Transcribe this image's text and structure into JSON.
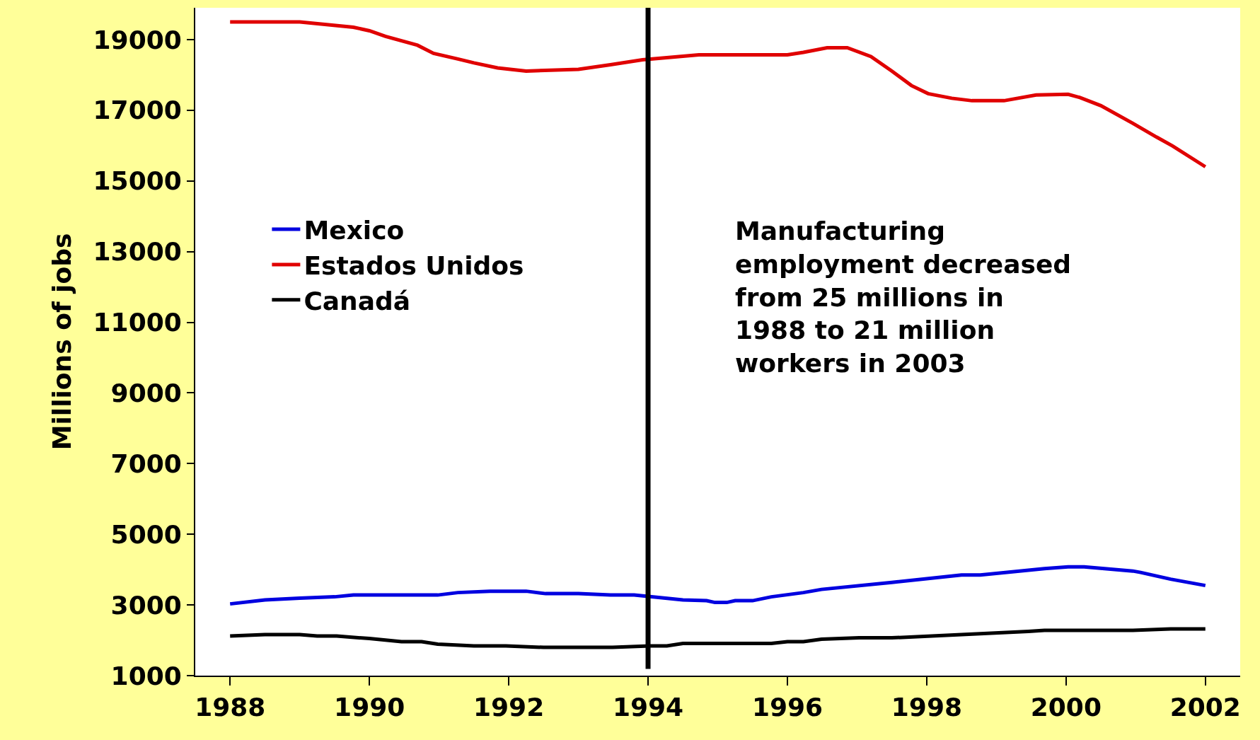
{
  "chart_data": {
    "type": "line",
    "ylabel": "Millions of jobs",
    "xlim": [
      1987.5,
      2002.5
    ],
    "xticks": [
      1988,
      1990,
      1992,
      1994,
      1996,
      1998,
      2000,
      2002
    ],
    "ylim": [
      1000,
      19900
    ],
    "yticks": [
      1000,
      3000,
      5000,
      7000,
      9000,
      11000,
      13000,
      15000,
      17000,
      19000
    ],
    "legend": "left",
    "marker": "none",
    "line_style": "solid",
    "series": [
      {
        "name": "Mexico",
        "color": "#0000e0",
        "x": [
          1988.0,
          1988.5,
          1989.0,
          1989.5,
          1989.77,
          1990.98,
          1991.27,
          1991.73,
          1992.25,
          1992.53,
          1993.0,
          1993.46,
          1993.8,
          1994.5,
          1994.84,
          1994.96,
          1995.13,
          1995.25,
          1995.5,
          1995.77,
          1996.23,
          1996.49,
          1997.5,
          1998.5,
          1998.77,
          1999.69,
          2000.03,
          2000.26,
          2000.96,
          2001.07,
          2001.5,
          2002.0
        ],
        "values": [
          3030,
          3140,
          3190,
          3230,
          3280,
          3280,
          3350,
          3390,
          3390,
          3320,
          3320,
          3280,
          3280,
          3140,
          3120,
          3070,
          3070,
          3120,
          3120,
          3230,
          3350,
          3440,
          3640,
          3850,
          3850,
          4030,
          4080,
          4080,
          3960,
          3920,
          3730,
          3550
        ]
      },
      {
        "name": "Estados Unidos",
        "color": "#e00000",
        "x": [
          1988.0,
          1989.0,
          1989.77,
          1990.0,
          1990.23,
          1990.69,
          1990.92,
          1991.27,
          1991.5,
          1991.84,
          1992.25,
          1993.0,
          1993.46,
          1993.92,
          1994.73,
          1996.0,
          1996.23,
          1996.57,
          1996.86,
          1997.2,
          1997.5,
          1997.78,
          1998.02,
          1998.36,
          1998.65,
          1999.11,
          1999.57,
          2000.03,
          2000.2,
          2000.5,
          2000.96,
          2001.3,
          2001.53,
          2002.0
        ],
        "values": [
          19500,
          19500,
          19350,
          19250,
          19090,
          18840,
          18610,
          18450,
          18340,
          18200,
          18110,
          18160,
          18290,
          18430,
          18570,
          18570,
          18640,
          18770,
          18770,
          18520,
          18110,
          17700,
          17470,
          17340,
          17270,
          17270,
          17430,
          17450,
          17360,
          17130,
          16630,
          16240,
          15990,
          15400
        ]
      },
      {
        "name": "Canadá",
        "color": "#000000",
        "x": [
          1988.0,
          1988.5,
          1989.0,
          1989.25,
          1989.53,
          1990.0,
          1990.46,
          1990.75,
          1990.98,
          1991.5,
          1991.96,
          1992.5,
          1993.49,
          1994.03,
          1994.27,
          1994.5,
          1995.77,
          1996.0,
          1996.23,
          1996.49,
          1997.03,
          1997.5,
          1998.5,
          1999.46,
          1999.69,
          2000.96,
          2001.5,
          2002.0
        ],
        "values": [
          2120,
          2160,
          2160,
          2120,
          2120,
          2050,
          1960,
          1960,
          1890,
          1840,
          1840,
          1800,
          1800,
          1840,
          1840,
          1910,
          1910,
          1960,
          1960,
          2030,
          2070,
          2070,
          2160,
          2250,
          2280,
          2280,
          2320,
          2320
        ]
      }
    ],
    "ref_lines": [
      {
        "axis": "x",
        "value": 1994,
        "color": "#000000"
      }
    ],
    "annotations": [
      "Manufacturing\nemployment decreased\nfrom 25 millions in\n1988 to 21 million\nworkers in 2003"
    ]
  }
}
